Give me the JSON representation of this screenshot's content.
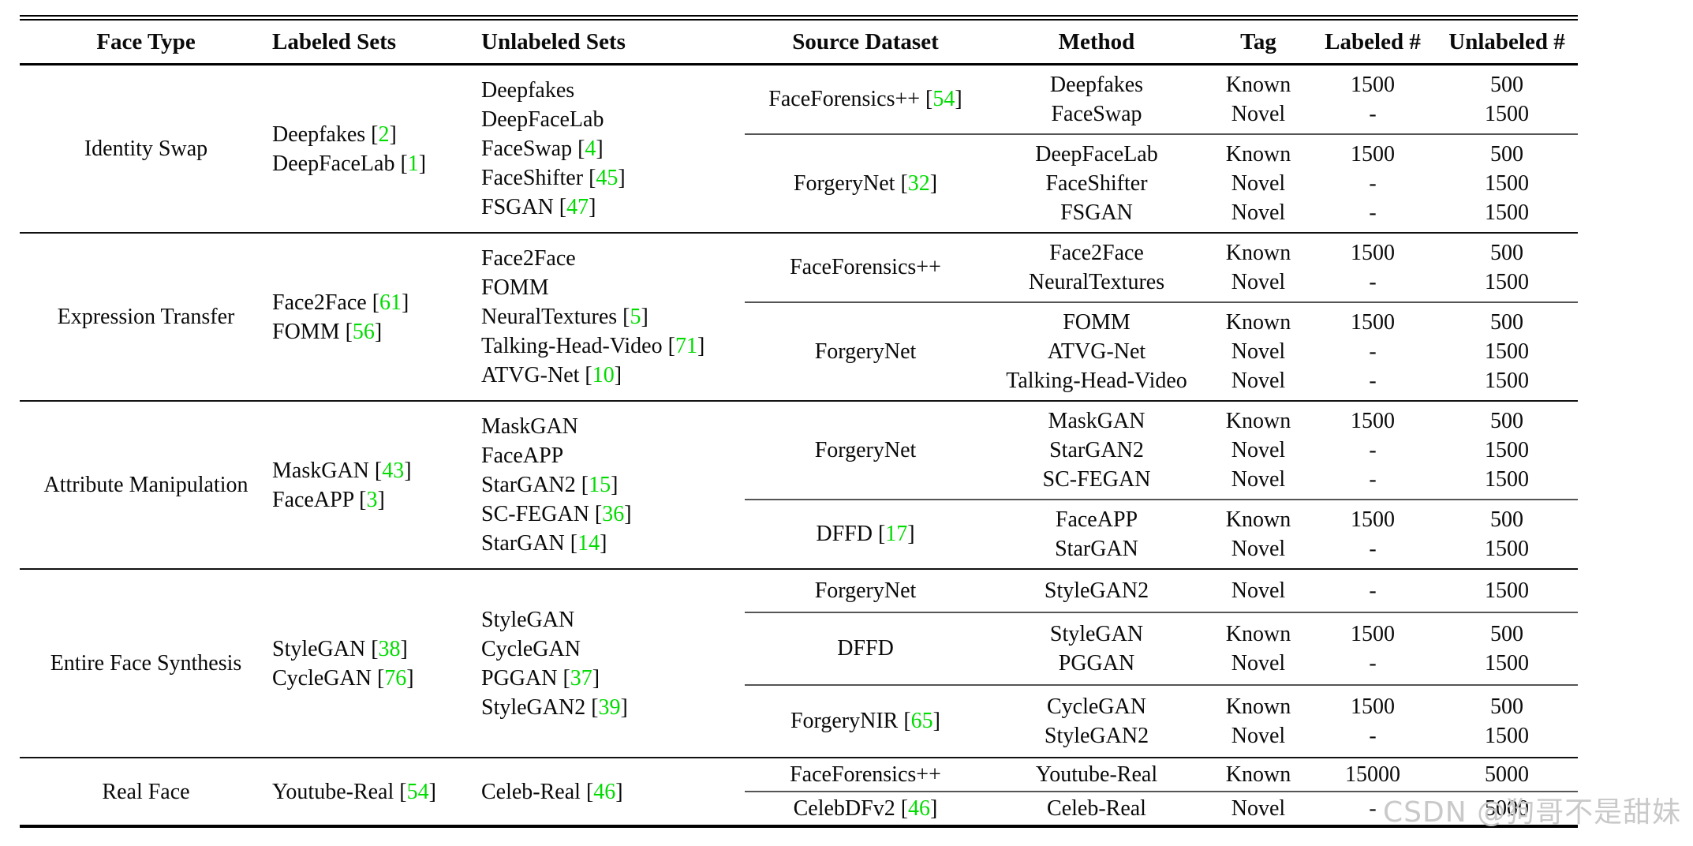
{
  "table": {
    "citation_color": "#00dc00",
    "headers": [
      "Face Type",
      "Labeled Sets",
      "Unlabeled Sets",
      "Source Dataset",
      "Method",
      "Tag",
      "Labeled #",
      "Unlabeled #"
    ],
    "sections": [
      {
        "face_type": "Identity Swap",
        "labeled_sets": [
          {
            "name": "Deepfakes",
            "cite": "2"
          },
          {
            "name": "DeepFaceLab",
            "cite": "1"
          }
        ],
        "unlabeled_sets": [
          {
            "name": "Deepfakes"
          },
          {
            "name": "DeepFaceLab"
          },
          {
            "name": "FaceSwap",
            "cite": "4"
          },
          {
            "name": "FaceShifter",
            "cite": "45"
          },
          {
            "name": "FSGAN",
            "cite": "47"
          }
        ],
        "groups": [
          {
            "source": "FaceForensics++",
            "cite": "54",
            "rows": [
              {
                "method": "Deepfakes",
                "tag": "Known",
                "labeled": "1500",
                "unlabeled": "500"
              },
              {
                "method": "FaceSwap",
                "tag": "Novel",
                "labeled": "-",
                "unlabeled": "1500"
              }
            ]
          },
          {
            "source": "ForgeryNet",
            "cite": "32",
            "rows": [
              {
                "method": "DeepFaceLab",
                "tag": "Known",
                "labeled": "1500",
                "unlabeled": "500"
              },
              {
                "method": "FaceShifter",
                "tag": "Novel",
                "labeled": "-",
                "unlabeled": "1500"
              },
              {
                "method": "FSGAN",
                "tag": "Novel",
                "labeled": "-",
                "unlabeled": "1500"
              }
            ]
          }
        ]
      },
      {
        "face_type": "Expression Transfer",
        "labeled_sets": [
          {
            "name": "Face2Face",
            "cite": "61"
          },
          {
            "name": "FOMM",
            "cite": "56"
          }
        ],
        "unlabeled_sets": [
          {
            "name": "Face2Face"
          },
          {
            "name": "FOMM"
          },
          {
            "name": "NeuralTextures",
            "cite": "5"
          },
          {
            "name": "Talking-Head-Video",
            "cite": "71"
          },
          {
            "name": "ATVG-Net",
            "cite": "10"
          }
        ],
        "groups": [
          {
            "source": "FaceForensics++",
            "rows": [
              {
                "method": "Face2Face",
                "tag": "Known",
                "labeled": "1500",
                "unlabeled": "500"
              },
              {
                "method": "NeuralTextures",
                "tag": "Novel",
                "labeled": "-",
                "unlabeled": "1500"
              }
            ]
          },
          {
            "source": "ForgeryNet",
            "rows": [
              {
                "method": "FOMM",
                "tag": "Known",
                "labeled": "1500",
                "unlabeled": "500"
              },
              {
                "method": "ATVG-Net",
                "tag": "Novel",
                "labeled": "-",
                "unlabeled": "1500"
              },
              {
                "method": "Talking-Head-Video",
                "tag": "Novel",
                "labeled": "-",
                "unlabeled": "1500"
              }
            ]
          }
        ]
      },
      {
        "face_type": "Attribute Manipulation",
        "labeled_sets": [
          {
            "name": "MaskGAN",
            "cite": "43"
          },
          {
            "name": "FaceAPP",
            "cite": "3"
          }
        ],
        "unlabeled_sets": [
          {
            "name": "MaskGAN"
          },
          {
            "name": "FaceAPP"
          },
          {
            "name": "StarGAN2",
            "cite": "15"
          },
          {
            "name": "SC-FEGAN",
            "cite": "36"
          },
          {
            "name": "StarGAN",
            "cite": "14"
          }
        ],
        "groups": [
          {
            "source": "ForgeryNet",
            "rows": [
              {
                "method": "MaskGAN",
                "tag": "Known",
                "labeled": "1500",
                "unlabeled": "500"
              },
              {
                "method": "StarGAN2",
                "tag": "Novel",
                "labeled": "-",
                "unlabeled": "1500"
              },
              {
                "method": "SC-FEGAN",
                "tag": "Novel",
                "labeled": "-",
                "unlabeled": "1500"
              }
            ]
          },
          {
            "source": "DFFD",
            "cite": "17",
            "rows": [
              {
                "method": "FaceAPP",
                "tag": "Known",
                "labeled": "1500",
                "unlabeled": "500"
              },
              {
                "method": "StarGAN",
                "tag": "Novel",
                "labeled": "-",
                "unlabeled": "1500"
              }
            ]
          }
        ]
      },
      {
        "face_type": "Entire Face Synthesis",
        "labeled_sets": [
          {
            "name": "StyleGAN",
            "cite": "38"
          },
          {
            "name": "CycleGAN",
            "cite": "76"
          }
        ],
        "unlabeled_sets": [
          {
            "name": "StyleGAN"
          },
          {
            "name": "CycleGAN"
          },
          {
            "name": "PGGAN",
            "cite": "37"
          },
          {
            "name": "StyleGAN2",
            "cite": "39"
          }
        ],
        "groups": [
          {
            "source": "ForgeryNet",
            "rows": [
              {
                "method": "StyleGAN2",
                "tag": "Novel",
                "labeled": "-",
                "unlabeled": "1500"
              }
            ]
          },
          {
            "source": "DFFD",
            "rows": [
              {
                "method": "StyleGAN",
                "tag": "Known",
                "labeled": "1500",
                "unlabeled": "500"
              },
              {
                "method": "PGGAN",
                "tag": "Novel",
                "labeled": "-",
                "unlabeled": "1500"
              }
            ]
          },
          {
            "source": "ForgeryNIR",
            "cite": "65",
            "rows": [
              {
                "method": "CycleGAN",
                "tag": "Known",
                "labeled": "1500",
                "unlabeled": "500"
              },
              {
                "method": "StyleGAN2",
                "tag": "Novel",
                "labeled": "-",
                "unlabeled": "1500"
              }
            ]
          }
        ]
      },
      {
        "face_type": "Real Face",
        "labeled_sets": [
          {
            "name": "Youtube-Real",
            "cite": "54"
          }
        ],
        "unlabeled_sets": [
          {
            "name": "Celeb-Real",
            "cite": "46"
          }
        ],
        "groups": [
          {
            "source": "FaceForensics++",
            "rows": [
              {
                "method": "Youtube-Real",
                "tag": "Known",
                "labeled": "15000",
                "unlabeled": "5000"
              }
            ]
          },
          {
            "source": "CelebDFv2",
            "cite": "46",
            "rows": [
              {
                "method": "Celeb-Real",
                "tag": "Novel",
                "labeled": "-",
                "unlabeled": "5000"
              }
            ]
          }
        ]
      }
    ]
  },
  "watermark": {
    "text": "CSDN @狗哥不是甜妹",
    "color": "#c9c9c9"
  }
}
